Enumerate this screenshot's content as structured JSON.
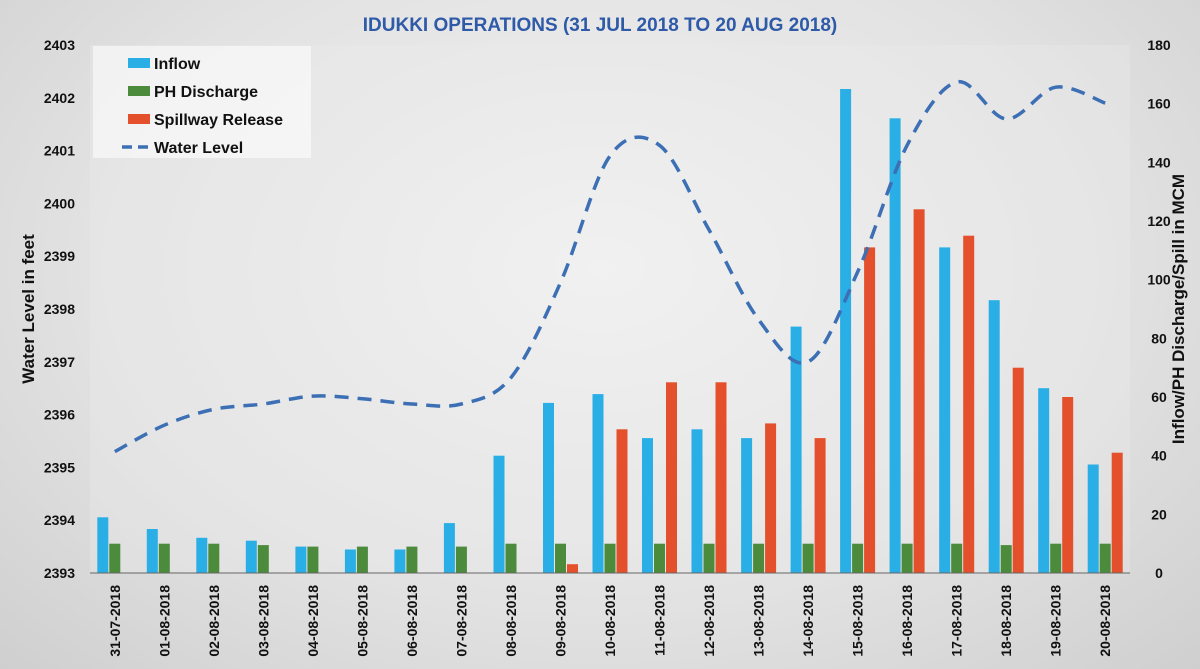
{
  "chart_data": {
    "type": "bar",
    "title": "IDUKKI OPERATIONS (31 JUL 2018 TO 20 AUG 2018)",
    "ylabel_left": "Water Level in feet",
    "ylabel_right": "Inflow/PH Discharge/Spill in MCM",
    "ylim_left": [
      2393,
      2403
    ],
    "ylim_right": [
      0,
      180
    ],
    "yticks_left": [
      "2393",
      "2394",
      "2395",
      "2396",
      "2397",
      "2398",
      "2399",
      "2400",
      "2401",
      "2402",
      "2403"
    ],
    "yticks_right": [
      "0",
      "20",
      "40",
      "60",
      "80",
      "100",
      "120",
      "140",
      "160",
      "180"
    ],
    "legend_position": "top-left",
    "grid": false,
    "categories": [
      "31-07-2018",
      "01-08-2018",
      "02-08-2018",
      "03-08-2018",
      "04-08-2018",
      "05-08-2018",
      "06-08-2018",
      "07-08-2018",
      "08-08-2018",
      "09-08-2018",
      "10-08-2018",
      "11-08-2018",
      "12-08-2018",
      "13-08-2018",
      "14-08-2018",
      "15-08-2018",
      "16-08-2018",
      "17-08-2018",
      "18-08-2018",
      "19-08-2018",
      "20-08-2018"
    ],
    "series": [
      {
        "name": "Inflow",
        "type": "bar",
        "axis": "right",
        "color": "#29aee6",
        "values": [
          19,
          15,
          12,
          11,
          9,
          8,
          8,
          17,
          40,
          58,
          61,
          46,
          49,
          46,
          84,
          165,
          155,
          111,
          93,
          63,
          37
        ]
      },
      {
        "name": "PH Discharge",
        "type": "bar",
        "axis": "right",
        "color": "#4b8b3b",
        "values": [
          10,
          10,
          10,
          9.5,
          9,
          9,
          9,
          9,
          10,
          10,
          10,
          10,
          10,
          10,
          10,
          10,
          10,
          10,
          9.5,
          10,
          10
        ]
      },
      {
        "name": "Spillway Release",
        "type": "bar",
        "axis": "right",
        "color": "#e3502b",
        "values": [
          0,
          0,
          0,
          0,
          0,
          0,
          0,
          0,
          0,
          3,
          49,
          65,
          65,
          51,
          46,
          111,
          124,
          115,
          70,
          60,
          41
        ]
      },
      {
        "name": "Water Level",
        "type": "line",
        "axis": "left",
        "color": "#3c6fb4",
        "dash": true,
        "values": [
          2395.3,
          2395.8,
          2396.1,
          2396.2,
          2396.35,
          2396.3,
          2396.2,
          2396.2,
          2396.7,
          2398.5,
          2400.9,
          2401.1,
          2399.5,
          2397.8,
          2397.0,
          2398.7,
          2401.1,
          2402.3,
          2401.6,
          2402.2,
          2401.9
        ]
      }
    ]
  }
}
